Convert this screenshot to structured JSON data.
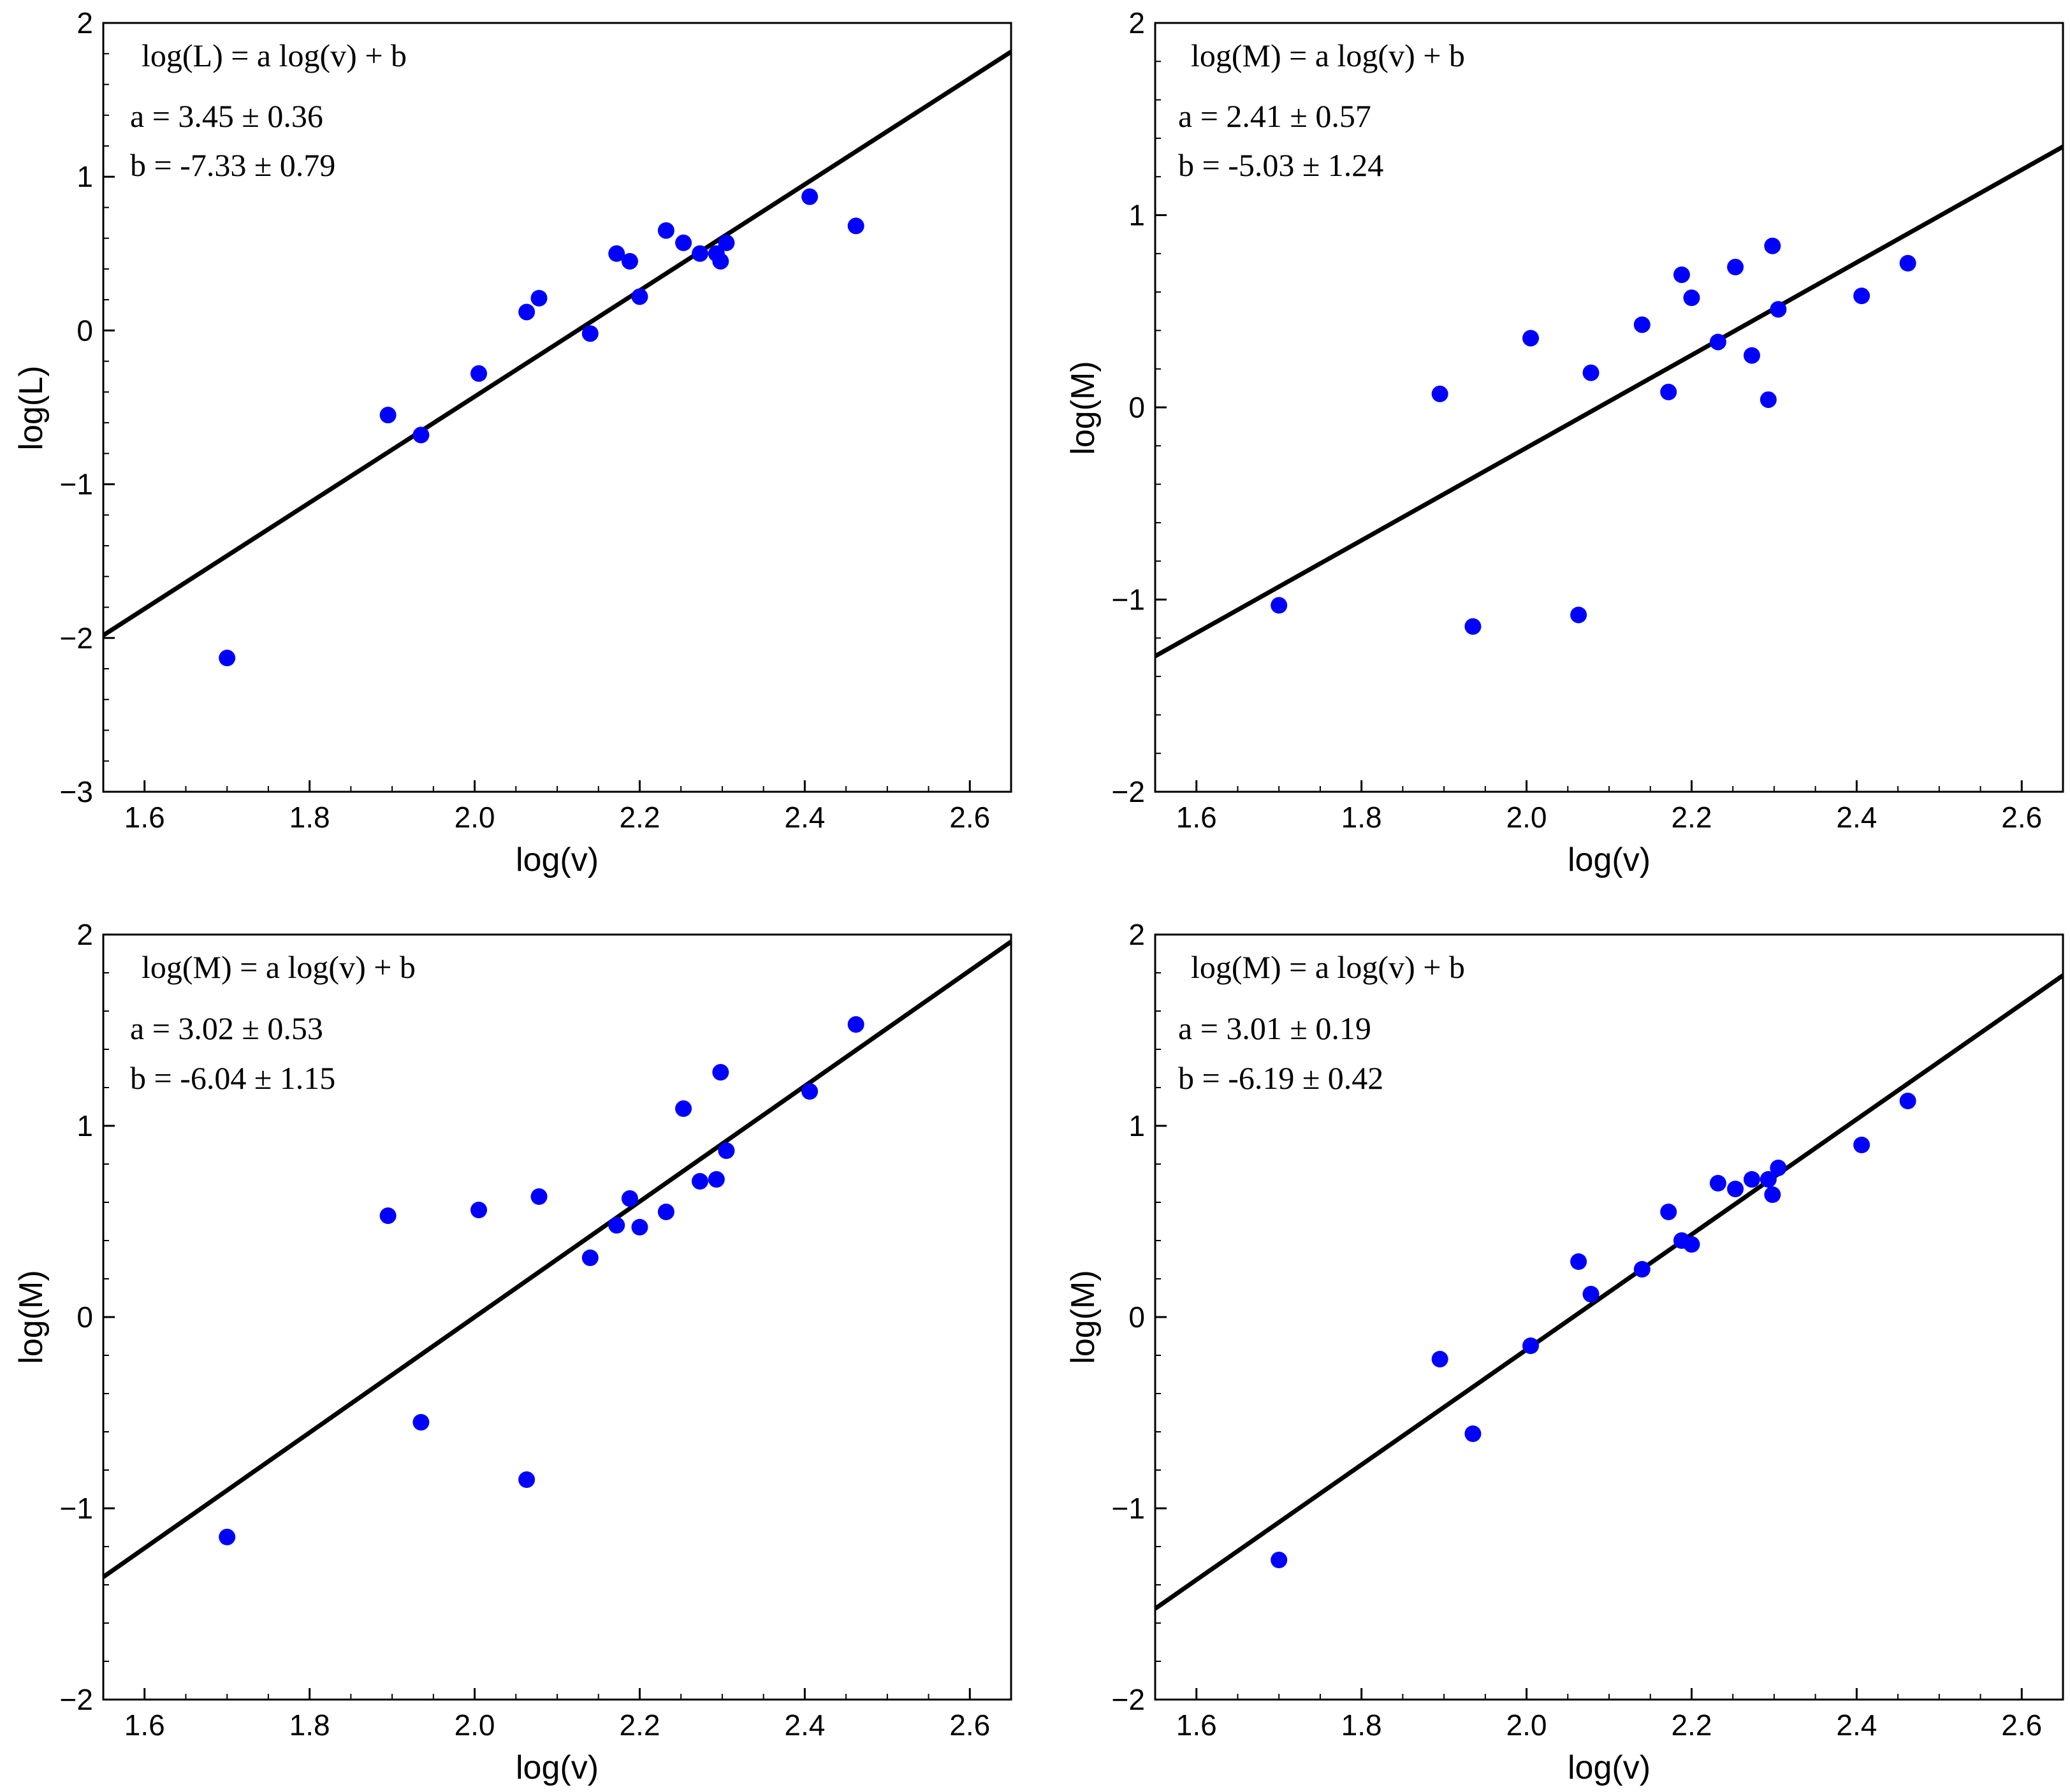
{
  "colors": {
    "points": "#0000FF",
    "line": "#000000"
  },
  "chart_data": [
    {
      "type": "scatter",
      "xlabel": "log(v)",
      "ylabel": "log(L)",
      "xlim": [
        1.55,
        2.65
      ],
      "ylim": [
        -3,
        2
      ],
      "xticks": [
        "1.6",
        "1.8",
        "2.0",
        "2.2",
        "2.4",
        "2.6"
      ],
      "yticks": [
        "−3",
        "−2",
        "−1",
        "0",
        "1",
        "2"
      ],
      "x": [
        1.7,
        1.895,
        1.935,
        2.005,
        2.063,
        2.078,
        2.14,
        2.172,
        2.188,
        2.2,
        2.232,
        2.253,
        2.273,
        2.293,
        2.298,
        2.305,
        2.406,
        2.462
      ],
      "y": [
        -2.13,
        -0.55,
        -0.68,
        -0.28,
        0.12,
        0.21,
        -0.02,
        0.5,
        0.45,
        0.22,
        0.65,
        0.57,
        0.5,
        0.5,
        0.45,
        0.57,
        0.87,
        0.68
      ],
      "fit": {
        "a": 3.45,
        "b": -7.33
      },
      "annotation": {
        "equation": "log(L) = a log(v) + b",
        "a_text": "a = 3.45 ± 0.36",
        "b_text": "b = -7.33 ± 0.79"
      }
    },
    {
      "type": "scatter",
      "xlabel": "log(v)",
      "ylabel": "log(M)",
      "xlim": [
        1.55,
        2.65
      ],
      "ylim": [
        -2,
        2
      ],
      "xticks": [
        "1.6",
        "1.8",
        "2.0",
        "2.2",
        "2.4",
        "2.6"
      ],
      "yticks": [
        "−2",
        "−1",
        "0",
        "1",
        "2"
      ],
      "x": [
        1.7,
        1.895,
        1.935,
        2.005,
        2.063,
        2.078,
        2.14,
        2.172,
        2.188,
        2.2,
        2.232,
        2.253,
        2.273,
        2.293,
        2.298,
        2.305,
        2.406,
        2.462
      ],
      "y": [
        -1.03,
        0.07,
        -1.14,
        0.36,
        -1.08,
        0.18,
        0.43,
        0.08,
        0.69,
        0.57,
        0.34,
        0.73,
        0.27,
        0.04,
        0.84,
        0.51,
        0.58,
        0.75
      ],
      "fit": {
        "a": 2.41,
        "b": -5.03
      },
      "annotation": {
        "equation": "log(M) = a log(v) + b",
        "a_text": "a =  2.41 ± 0.57",
        "b_text": "b = -5.03 ± 1.24"
      }
    },
    {
      "type": "scatter",
      "xlabel": "log(v)",
      "ylabel": "log(M)",
      "xlim": [
        1.55,
        2.65
      ],
      "ylim": [
        -2,
        2
      ],
      "xticks": [
        "1.6",
        "1.8",
        "2.0",
        "2.2",
        "2.4",
        "2.6"
      ],
      "yticks": [
        "−2",
        "−1",
        "0",
        "1",
        "2"
      ],
      "x": [
        1.7,
        1.895,
        1.935,
        2.005,
        2.063,
        2.078,
        2.14,
        2.172,
        2.188,
        2.2,
        2.232,
        2.253,
        2.273,
        2.293,
        2.298,
        2.305,
        2.406,
        2.462
      ],
      "y": [
        -1.15,
        0.53,
        -0.55,
        0.56,
        -0.85,
        0.63,
        0.31,
        0.48,
        0.62,
        0.47,
        0.55,
        1.09,
        0.71,
        0.72,
        1.28,
        0.87,
        1.18,
        1.53
      ],
      "fit": {
        "a": 3.02,
        "b": -6.04
      },
      "annotation": {
        "equation": "log(M) = a log(v) + b",
        "a_text": "a =  3.02 ± 0.53",
        "b_text": "b = -6.04 ± 1.15"
      }
    },
    {
      "type": "scatter",
      "xlabel": "log(v)",
      "ylabel": "log(M)",
      "xlim": [
        1.55,
        2.65
      ],
      "ylim": [
        -2,
        2
      ],
      "xticks": [
        "1.6",
        "1.8",
        "2.0",
        "2.2",
        "2.4",
        "2.6"
      ],
      "yticks": [
        "−2",
        "−1",
        "0",
        "1",
        "2"
      ],
      "x": [
        1.7,
        1.895,
        1.935,
        2.005,
        2.063,
        2.078,
        2.14,
        2.172,
        2.188,
        2.2,
        2.232,
        2.253,
        2.273,
        2.293,
        2.298,
        2.305,
        2.406,
        2.462
      ],
      "y": [
        -1.27,
        -0.22,
        -0.61,
        -0.15,
        0.29,
        0.12,
        0.25,
        0.55,
        0.4,
        0.38,
        0.7,
        0.67,
        0.72,
        0.72,
        0.64,
        0.78,
        0.9,
        1.13
      ],
      "fit": {
        "a": 3.01,
        "b": -6.19
      },
      "annotation": {
        "equation": "log(M) = a log(v) + b",
        "a_text": "a =  3.01 ± 0.19",
        "b_text": "b = -6.19 ± 0.42"
      }
    }
  ]
}
